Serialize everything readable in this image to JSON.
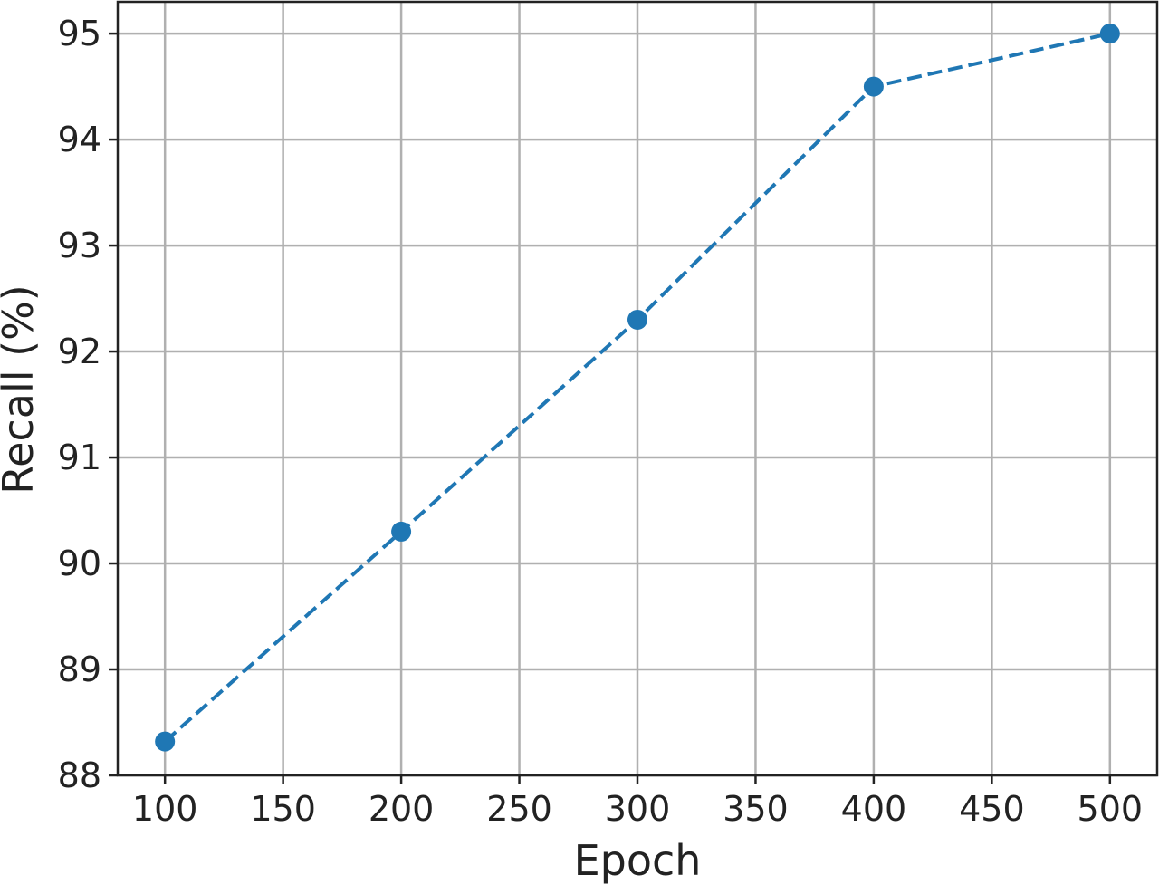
{
  "chart_data": {
    "type": "line",
    "title": "",
    "xlabel": "Epoch",
    "ylabel": "Recall (%)",
    "x": [
      100,
      200,
      300,
      400,
      500
    ],
    "series": [
      {
        "values": [
          88.32,
          90.3,
          92.3,
          94.5,
          95.0
        ]
      }
    ],
    "xlim": [
      80,
      520
    ],
    "ylim": [
      88,
      95.3
    ],
    "xticks": [
      "100",
      "150",
      "200",
      "250",
      "300",
      "350",
      "400",
      "450",
      "500"
    ],
    "yticks": [
      "88",
      "89",
      "90",
      "91",
      "92",
      "93",
      "94",
      "95"
    ],
    "grid": true,
    "line_style": "dashed",
    "marker": "circle",
    "color": "#1f77b4"
  }
}
